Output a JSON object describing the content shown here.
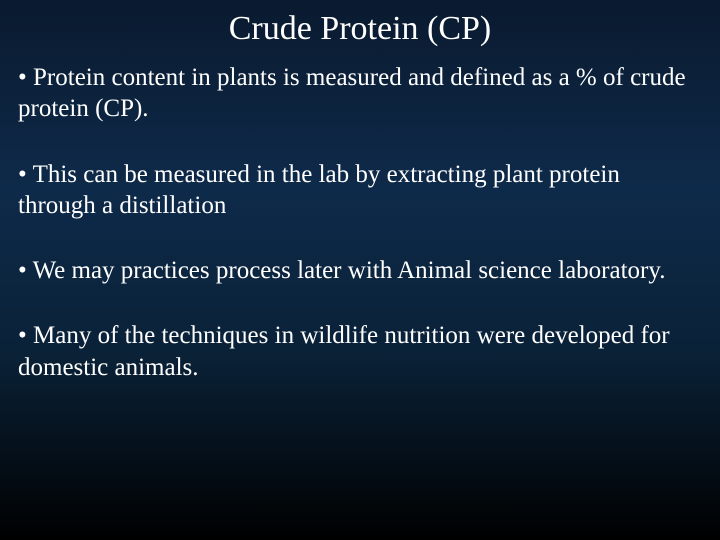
{
  "slide": {
    "title": "Crude Protein (CP)",
    "title_fontsize": 34,
    "body_fontsize": 25,
    "text_color": "#ffffff",
    "background_gradient": [
      "#0a1a2f",
      "#0e2a4a",
      "#0a2238",
      "#000000"
    ],
    "bullets": [
      "Protein content in plants is measured and defined as a % of crude protein (CP).",
      "This can be measured in the lab by extracting plant protein through a distillation",
      "We may practices process later with Animal science laboratory.",
      "Many of the techniques in wildlife nutrition were developed for domestic animals."
    ]
  }
}
